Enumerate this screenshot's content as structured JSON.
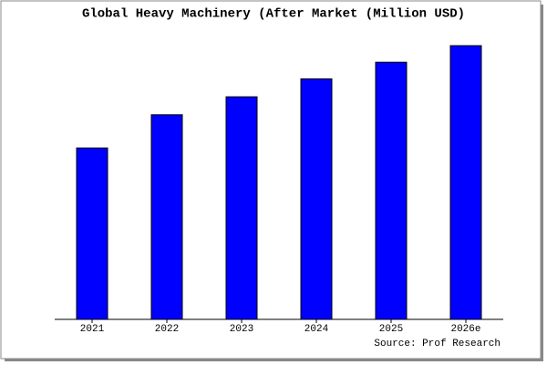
{
  "chart_data": {
    "type": "bar",
    "title": "Global Heavy Machinery (After Market (Million USD)",
    "source": "Source: Prof Research",
    "categories": [
      "2021",
      "2022",
      "2023",
      "2024",
      "2025",
      "2026e"
    ],
    "values": [
      62,
      74,
      80.5,
      87,
      93,
      99
    ],
    "color": "#0000ff",
    "ylim": [
      0,
      100
    ],
    "grid": false
  }
}
